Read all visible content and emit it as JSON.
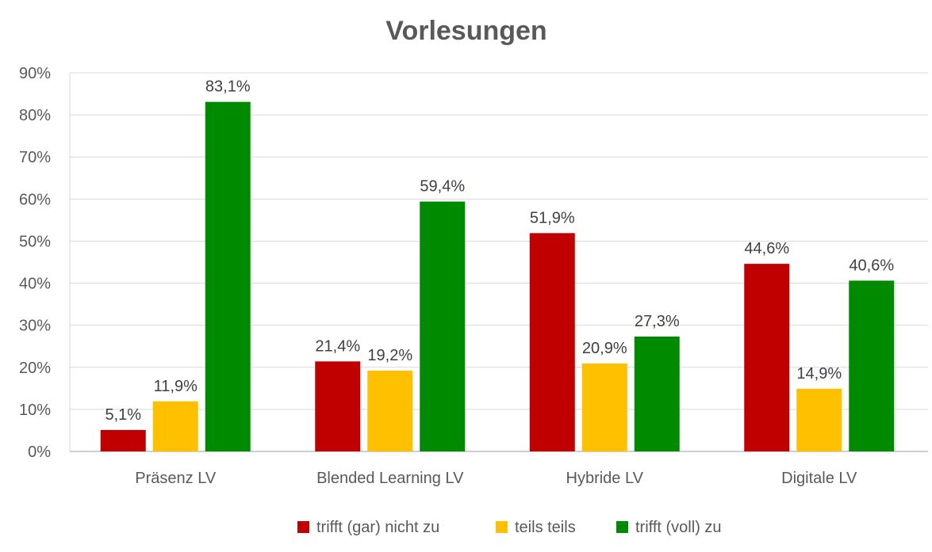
{
  "chart_data": {
    "type": "bar",
    "title": "Vorlesungen",
    "categories": [
      "Präsenz LV",
      "Blended Learning LV",
      "Hybride LV",
      "Digitale LV"
    ],
    "series": [
      {
        "name": "trifft (gar) nicht zu",
        "color": "#c00000",
        "values": [
          5.1,
          21.4,
          51.9,
          44.6
        ],
        "labels": [
          "5,1%",
          "21,4%",
          "51,9%",
          "44,6%"
        ]
      },
      {
        "name": "teils teils",
        "color": "#ffc000",
        "values": [
          11.9,
          19.2,
          20.9,
          14.9
        ],
        "labels": [
          "11,9%",
          "19,2%",
          "20,9%",
          "14,9%"
        ]
      },
      {
        "name": "trifft (voll) zu",
        "color": "#008a00",
        "values": [
          83.1,
          59.4,
          27.3,
          40.6
        ],
        "labels": [
          "83,1%",
          "59,4%",
          "27,3%",
          "40,6%"
        ]
      }
    ],
    "ylim": [
      0,
      90
    ],
    "yticks": [
      "0%",
      "10%",
      "20%",
      "30%",
      "40%",
      "50%",
      "60%",
      "70%",
      "80%",
      "90%"
    ],
    "grid": true,
    "legend": "bottom"
  }
}
